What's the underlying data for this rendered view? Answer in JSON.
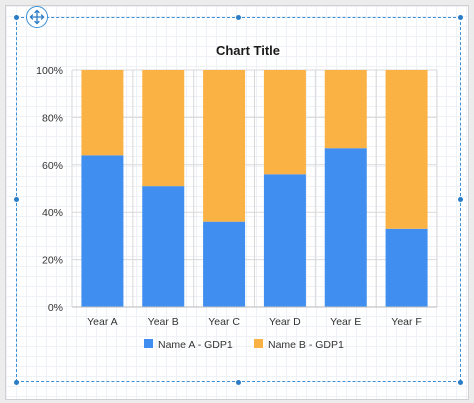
{
  "chart_data": {
    "type": "bar",
    "stacked": "percent",
    "title": "Chart Title",
    "categories": [
      "Year A",
      "Year B",
      "Year C",
      "Year D",
      "Year E",
      "Year F"
    ],
    "series": [
      {
        "name": "Name A - GDP1",
        "color": "#3f8ef0",
        "values": [
          64,
          51,
          36,
          56,
          67,
          33
        ]
      },
      {
        "name": "Name B - GDP1",
        "color": "#fbb244",
        "values": [
          36,
          49,
          64,
          44,
          33,
          67
        ]
      }
    ],
    "ylim": [
      0,
      100
    ],
    "yticks": [
      "0%",
      "20%",
      "40%",
      "60%",
      "80%",
      "100%"
    ],
    "grid": true,
    "legend": "bottom"
  },
  "icons": {
    "move_handle": "move-arrows-icon"
  }
}
